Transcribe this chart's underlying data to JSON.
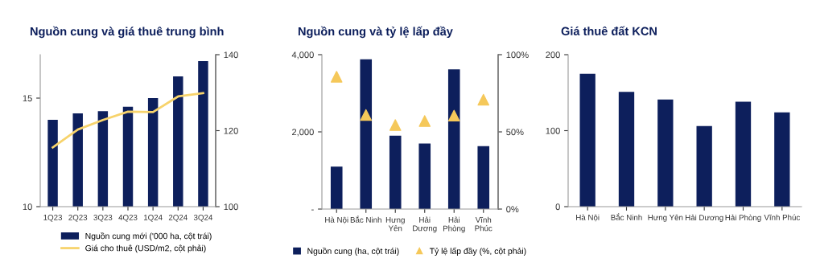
{
  "chart_data": [
    {
      "type": "bar",
      "title": "Nguồn cung và giá thuê trung bình",
      "categories": [
        "1Q23",
        "2Q23",
        "3Q23",
        "4Q23",
        "1Q24",
        "2Q24",
        "3Q24"
      ],
      "series": [
        {
          "name": "Nguồn cung mới ('000 ha, cột trái)",
          "color": "#0d1f5c",
          "values": [
            14.0,
            14.3,
            14.4,
            14.6,
            15.0,
            16.0,
            16.7
          ]
        },
        {
          "name": "Giá cho thuê (USD/m2, cột phải)",
          "type": "line",
          "axis": "y2",
          "color": "#f7d36b",
          "values": [
            115.6,
            120.3,
            122.8,
            125.0,
            124.9,
            129.0,
            129.9
          ]
        }
      ],
      "ylim": [
        10,
        17
      ],
      "yticks": [
        10,
        15
      ],
      "y2lim": [
        100,
        140
      ],
      "y2ticks": [
        100,
        120,
        140
      ],
      "legend": "bottom",
      "grid": false
    },
    {
      "type": "bar",
      "title": "Nguồn cung và tỷ lệ lấp đầy",
      "categories": [
        "Hà Nội",
        "Bắc Ninh",
        "Hưng\nYên",
        "Hải\nDương",
        "Hải\nPhòng",
        "Vĩnh\nPhúc"
      ],
      "series": [
        {
          "name": "Nguồn cung (ha, cột trái)",
          "color": "#0d1f5c",
          "values": [
            1100,
            3880,
            1900,
            1700,
            3620,
            1630
          ]
        },
        {
          "name": "Tỷ lệ lấp đầy (%, cột phải)",
          "type": "scatter",
          "axis": "y2",
          "color": "#f5c85a",
          "marker": "triangle",
          "values": [
            85.7,
            60.9,
            54.4,
            57,
            60.5,
            70.8
          ]
        }
      ],
      "ylim": [
        0,
        4000
      ],
      "yticks": [
        {
          "value": 0,
          "label": "-"
        },
        {
          "value": 2000,
          "label": "2,000"
        },
        {
          "value": 4000,
          "label": "4,000"
        }
      ],
      "y2lim": [
        0,
        100
      ],
      "y2ticks": [
        {
          "value": 0,
          "label": "0%"
        },
        {
          "value": 50,
          "label": "50%"
        },
        {
          "value": 100,
          "label": "100%"
        }
      ],
      "legend": "bottom",
      "grid": false
    },
    {
      "type": "bar",
      "title": "Giá thuê đất KCN",
      "categories": [
        "Hà Nội",
        "Bắc Ninh",
        "Hưng Yên",
        "Hải Dương",
        "Hải Phòng",
        "Vĩnh Phúc"
      ],
      "series": [
        {
          "color": "#0d1f5c",
          "values": [
            175,
            151,
            141,
            106,
            138,
            124
          ]
        }
      ],
      "ylim": [
        0,
        200
      ],
      "yticks": [
        0,
        100,
        200
      ],
      "legend": false,
      "grid": false
    }
  ]
}
